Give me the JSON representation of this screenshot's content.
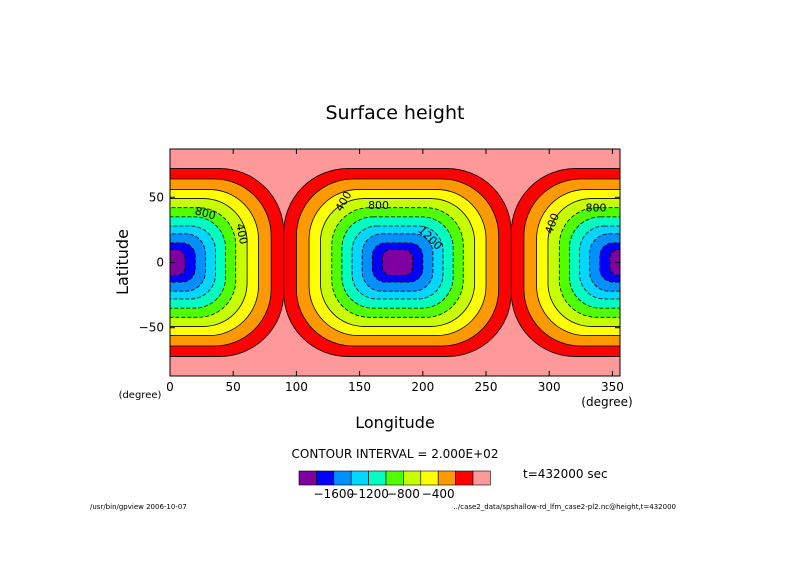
{
  "chart_data": {
    "type": "heatmap",
    "subtype": "filled-contour",
    "title": "Surface height",
    "xlabel": "Longitude",
    "ylabel": "Latitude",
    "x_unit": "(degree)",
    "y_unit": "(degree)",
    "xlim": [
      0,
      356
    ],
    "ylim": [
      -87,
      87
    ],
    "x_ticks": [
      0,
      50,
      100,
      150,
      200,
      250,
      300,
      350
    ],
    "y_ticks": [
      -50,
      0,
      50
    ],
    "contour_interval_text": "CONTOUR INTERVAL = 2.000E+02",
    "time_text": "t=432000 sec",
    "colorbar": {
      "colors": [
        "#7f00a0",
        "#0000ff",
        "#0090ff",
        "#00d6ff",
        "#00ffc0",
        "#50ff00",
        "#c8ff00",
        "#ffff00",
        "#ff9900",
        "#ff0000",
        "#ff9999"
      ],
      "tick_labels": [
        "−1600",
        "−1200",
        "−800",
        "−400"
      ]
    },
    "contour_labels": [
      {
        "text": "800",
        "lon": 28,
        "lat": 38,
        "angle": 15
      },
      {
        "text": "400",
        "lon": 57,
        "lat": 22,
        "angle": 78
      },
      {
        "text": "400",
        "lon": 137,
        "lat": 47,
        "angle": -60
      },
      {
        "text": "800",
        "lon": 165,
        "lat": 44,
        "angle": 0
      },
      {
        "text": "1200",
        "lon": 206,
        "lat": 19,
        "angle": 45
      },
      {
        "text": "400",
        "lon": 302,
        "lat": 30,
        "angle": -70
      },
      {
        "text": "800",
        "lon": 337,
        "lat": 42,
        "angle": 0
      }
    ],
    "vortex_centers_lon": [
      0,
      180,
      360
    ],
    "grid": false,
    "legend": "colorbar-bottom"
  },
  "footer": {
    "left": "/usr/bin/gpview  2006-10-07",
    "right": "../case2_data/spshallow-rd_lfm_case2-pl2.nc@height,t=432000"
  }
}
